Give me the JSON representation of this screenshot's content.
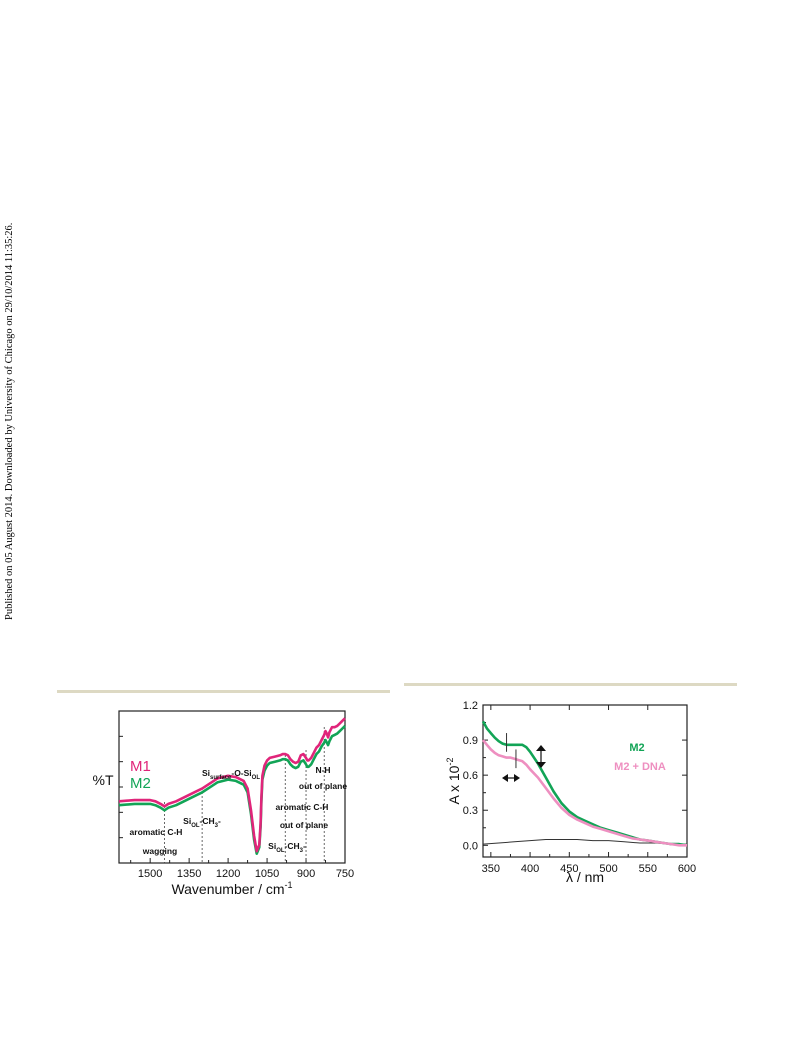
{
  "side_note": "Published on 05 August 2014. Downloaded by University of Chicago on 29/10/2014 11:35:26.",
  "colors": {
    "rule": "#ddd9c3",
    "m1": "#e0257a",
    "m2": "#12a456",
    "m2_dna": "#ee8fc0",
    "baseline": "#333333"
  },
  "chart_data": [
    {
      "type": "line",
      "xlabel": "Wavenumber / cm",
      "xlabel_sup": "-1",
      "ylabel": "%T",
      "xlim": [
        1620,
        750
      ],
      "x_reversed": true,
      "y_ticks_labeled": false,
      "x_ticks": [
        1500,
        1350,
        1200,
        1050,
        900,
        750
      ],
      "series": [
        {
          "name": "M1",
          "color": "#e0257a",
          "x": [
            1620,
            1560,
            1500,
            1480,
            1460,
            1445,
            1430,
            1400,
            1360,
            1320,
            1300,
            1270,
            1240,
            1200,
            1170,
            1140,
            1125,
            1112,
            1100,
            1090,
            1080,
            1075,
            1072,
            1068,
            1060,
            1050,
            1040,
            1020,
            1000,
            990,
            980,
            970,
            960,
            950,
            940,
            930,
            920,
            910,
            900,
            895,
            890,
            880,
            870,
            860,
            850,
            840,
            830,
            825,
            820,
            815,
            810,
            800,
            790,
            780,
            770,
            760,
            750
          ],
          "y": [
            42,
            43,
            43,
            42,
            40,
            38,
            40,
            42,
            46,
            50,
            52,
            56,
            60,
            62,
            61,
            58,
            52,
            35,
            15,
            3,
            8,
            25,
            45,
            62,
            70,
            74,
            76,
            77,
            78,
            79,
            79,
            78,
            75,
            73,
            72,
            73,
            78,
            79,
            76,
            74,
            74,
            76,
            80,
            84,
            86,
            90,
            94,
            97,
            95,
            92,
            96,
            100,
            100,
            101,
            103,
            105,
            107
          ]
        },
        {
          "name": "M2",
          "color": "#12a456",
          "x": [
            1620,
            1560,
            1500,
            1480,
            1460,
            1445,
            1430,
            1400,
            1360,
            1320,
            1300,
            1270,
            1240,
            1200,
            1170,
            1140,
            1125,
            1112,
            1100,
            1090,
            1080,
            1075,
            1072,
            1068,
            1060,
            1050,
            1040,
            1020,
            1000,
            990,
            980,
            970,
            960,
            950,
            940,
            930,
            920,
            910,
            900,
            895,
            890,
            880,
            870,
            860,
            850,
            840,
            830,
            825,
            820,
            815,
            810,
            800,
            790,
            780,
            770,
            760,
            750
          ],
          "y": [
            39,
            40,
            40,
            39,
            37,
            35,
            37,
            39,
            43,
            47,
            49,
            53,
            57,
            59,
            58,
            55,
            49,
            32,
            12,
            1,
            6,
            22,
            42,
            59,
            66,
            70,
            72,
            73,
            74,
            75,
            75,
            74,
            71,
            69,
            68,
            69,
            73,
            74,
            71,
            69,
            69,
            71,
            75,
            79,
            81,
            85,
            88,
            90,
            88,
            86,
            89,
            93,
            94,
            95,
            97,
            99,
            101
          ]
        }
      ],
      "annotations": [
        {
          "lines": [
            "aromatic C-H",
            "wagging"
          ],
          "x": 1445
        },
        {
          "text": "Si",
          "sub": "OL",
          "suffix": "-CH",
          "sub2": "3",
          "end": "-",
          "x": 1300
        },
        {
          "text": "Si",
          "sub": "surface",
          "suffix": "-O-Si",
          "sub2": "OL",
          "x": 1080
        },
        {
          "text": "Si",
          "sub": "OL",
          "suffix": "-CH",
          "sub2": "3",
          "end": "-",
          "x": 900
        },
        {
          "lines": [
            "aromatic C-H",
            "out of plane"
          ],
          "x": 980
        },
        {
          "lines": [
            "N-H",
            "out of plane"
          ],
          "x": 830
        }
      ]
    },
    {
      "type": "line",
      "xlabel": "λ / nm",
      "ylabel": "A x 10",
      "ylabel_sup": "-2",
      "xlim": [
        340,
        600
      ],
      "ylim": [
        -0.1,
        1.2
      ],
      "x_ticks": [
        350,
        400,
        450,
        500,
        550,
        600
      ],
      "y_ticks": [
        0.0,
        0.3,
        0.6,
        0.9,
        1.2
      ],
      "series": [
        {
          "name": "M2",
          "color": "#12a456",
          "x": [
            340,
            345,
            350,
            355,
            360,
            365,
            370,
            375,
            380,
            385,
            390,
            395,
            400,
            410,
            420,
            430,
            440,
            450,
            460,
            470,
            480,
            490,
            500,
            510,
            520,
            530,
            540,
            550,
            560,
            570,
            580,
            590,
            600
          ],
          "y": [
            1.06,
            1.0,
            0.96,
            0.92,
            0.89,
            0.87,
            0.86,
            0.86,
            0.86,
            0.86,
            0.86,
            0.84,
            0.8,
            0.7,
            0.58,
            0.46,
            0.36,
            0.29,
            0.24,
            0.21,
            0.18,
            0.15,
            0.13,
            0.11,
            0.09,
            0.07,
            0.05,
            0.04,
            0.03,
            0.02,
            0.01,
            0.01,
            0.0
          ]
        },
        {
          "name": "M2 + DNA",
          "color": "#ee8fc0",
          "x": [
            340,
            345,
            350,
            355,
            360,
            365,
            370,
            375,
            380,
            385,
            390,
            395,
            400,
            410,
            420,
            430,
            440,
            450,
            460,
            470,
            480,
            490,
            500,
            510,
            520,
            530,
            540,
            550,
            560,
            570,
            580,
            590,
            600
          ],
          "y": [
            0.9,
            0.86,
            0.82,
            0.79,
            0.77,
            0.76,
            0.75,
            0.75,
            0.74,
            0.73,
            0.72,
            0.69,
            0.65,
            0.58,
            0.49,
            0.4,
            0.32,
            0.26,
            0.22,
            0.19,
            0.16,
            0.14,
            0.12,
            0.1,
            0.08,
            0.06,
            0.05,
            0.04,
            0.03,
            0.02,
            0.01,
            0.0,
            0.0
          ]
        },
        {
          "name": "",
          "color": "#333333",
          "x": [
            340,
            360,
            380,
            400,
            420,
            440,
            460,
            480,
            500,
            520,
            540,
            560,
            580,
            600
          ],
          "y": [
            0.01,
            0.02,
            0.03,
            0.04,
            0.05,
            0.05,
            0.05,
            0.04,
            0.04,
            0.03,
            0.02,
            0.02,
            0.01,
            0.01
          ]
        }
      ]
    }
  ]
}
